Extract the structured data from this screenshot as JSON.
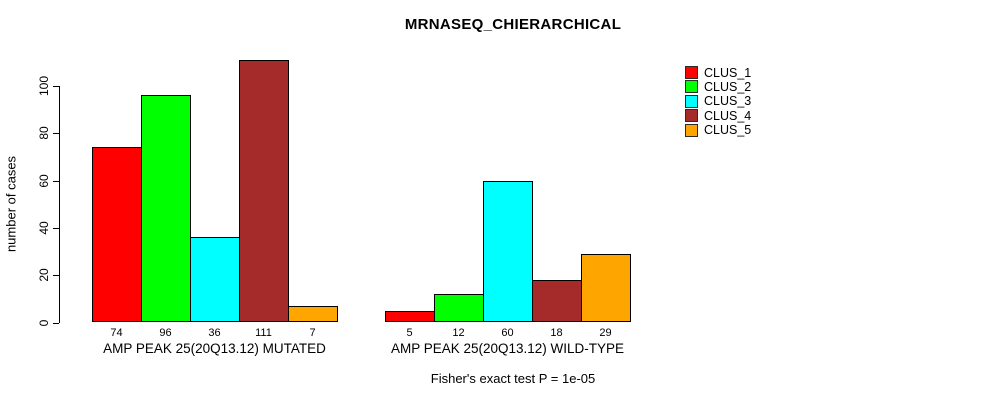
{
  "chart_data": {
    "type": "bar",
    "title": "MRNASEQ_CHIERARCHICAL",
    "xlabel": "",
    "ylabel": "number of cases",
    "ylim": [
      0,
      100
    ],
    "yticks": [
      0,
      20,
      40,
      60,
      80,
      100
    ],
    "grid": false,
    "legend_position": "right",
    "series": [
      {
        "name": "CLUS_1",
        "color": "#FF0000"
      },
      {
        "name": "CLUS_2",
        "color": "#00FF00"
      },
      {
        "name": "CLUS_3",
        "color": "#00FFFF"
      },
      {
        "name": "CLUS_4",
        "color": "#A52A2A"
      },
      {
        "name": "CLUS_5",
        "color": "#FFA500"
      }
    ],
    "groups": [
      {
        "label": "AMP PEAK 25(20Q13.12) MUTATED",
        "values": [
          74,
          96,
          36,
          111,
          7
        ]
      },
      {
        "label": "AMP PEAK 25(20Q13.12) WILD-TYPE",
        "values": [
          5,
          12,
          60,
          18,
          29
        ]
      }
    ],
    "annotation": "Fisher's exact test P = 1e-05"
  }
}
